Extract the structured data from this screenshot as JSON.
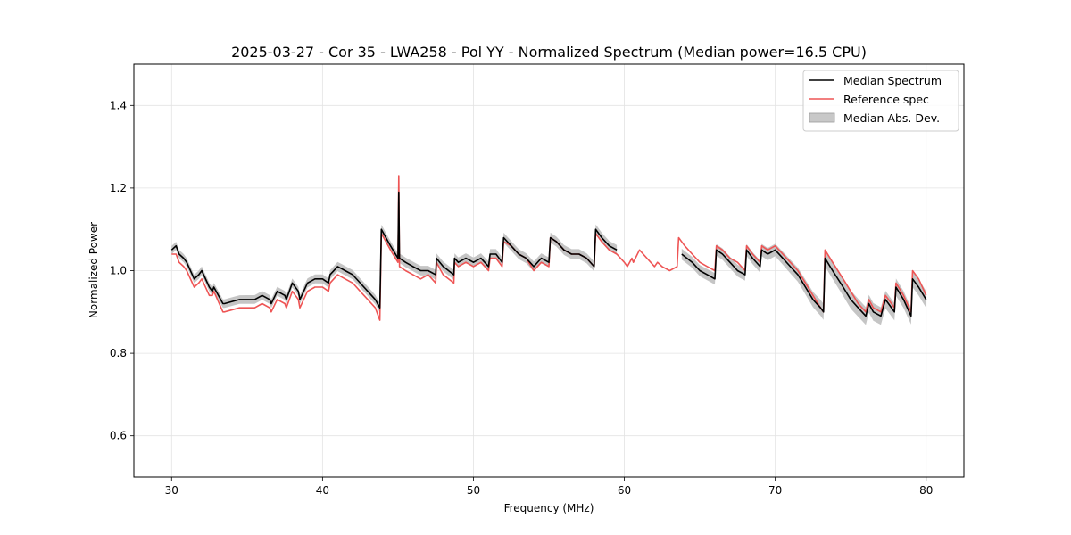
{
  "chart_data": {
    "type": "line",
    "title": "2025-03-27 - Cor 35 - LWA258 - Pol YY - Normalized Spectrum (Median power=16.5 CPU)",
    "xlabel": "Frequency (MHz)",
    "ylabel": "Normalized Power",
    "xlim": [
      27.5,
      82.5
    ],
    "ylim": [
      0.5,
      1.5
    ],
    "xticks": [
      30,
      40,
      50,
      60,
      70,
      80
    ],
    "yticks": [
      0.6,
      0.8,
      1.0,
      1.2,
      1.4
    ],
    "grid": true,
    "legend_position": "top-right",
    "colors": {
      "median": "#000000",
      "reference": "#ee5555",
      "mad": "#bbbbbb"
    },
    "series": [
      {
        "name": "Median Spectrum",
        "x": [
          30.0,
          30.3,
          30.5,
          30.8,
          31.0,
          31.5,
          31.8,
          32.0,
          32.5,
          32.7,
          32.8,
          33.4,
          33.5,
          34.5,
          35.0,
          35.5,
          36.0,
          36.5,
          36.6,
          37.0,
          37.5,
          37.6,
          38.0,
          38.4,
          38.5,
          39.0,
          39.5,
          40.0,
          40.4,
          40.5,
          41.0,
          41.5,
          42.0,
          42.5,
          43.0,
          43.5,
          43.8,
          43.9,
          44.5,
          45.0,
          45.05,
          45.1,
          45.5,
          46.0,
          46.5,
          47.0,
          47.5,
          47.55,
          48.0,
          48.7,
          48.75,
          49.0,
          49.5,
          50.0,
          50.5,
          51.0,
          51.1,
          51.5,
          51.9,
          52.0,
          52.5,
          53.0,
          53.5,
          54.0,
          54.5,
          55.0,
          55.1,
          55.5,
          56.0,
          56.5,
          57.0,
          57.5,
          58.0,
          58.1,
          58.5,
          59.0,
          59.5,
          null,
          63.8,
          64.5,
          65.0,
          65.5,
          66.0,
          66.1,
          66.5,
          67.0,
          67.5,
          68.0,
          68.1,
          68.5,
          69.0,
          69.1,
          69.5,
          70.0,
          70.5,
          71.0,
          71.5,
          72.0,
          72.5,
          73.0,
          73.2,
          73.3,
          73.8,
          74.5,
          75.0,
          75.5,
          76.0,
          76.2,
          76.5,
          77.0,
          77.3,
          77.5,
          77.9,
          78.0,
          78.5,
          79.0,
          79.1,
          79.5,
          80.0
        ],
        "values": [
          1.05,
          1.06,
          1.04,
          1.03,
          1.02,
          0.98,
          0.99,
          1.0,
          0.96,
          0.95,
          0.96,
          0.92,
          0.92,
          0.93,
          0.93,
          0.93,
          0.94,
          0.93,
          0.92,
          0.95,
          0.94,
          0.93,
          0.97,
          0.95,
          0.93,
          0.97,
          0.98,
          0.98,
          0.97,
          0.99,
          1.01,
          1.0,
          0.99,
          0.97,
          0.95,
          0.93,
          0.91,
          1.1,
          1.06,
          1.03,
          1.19,
          1.03,
          1.02,
          1.01,
          1.0,
          1.0,
          0.99,
          1.03,
          1.01,
          0.99,
          1.03,
          1.02,
          1.03,
          1.02,
          1.03,
          1.01,
          1.04,
          1.04,
          1.02,
          1.08,
          1.06,
          1.04,
          1.03,
          1.01,
          1.03,
          1.02,
          1.08,
          1.07,
          1.05,
          1.04,
          1.04,
          1.03,
          1.01,
          1.1,
          1.08,
          1.06,
          1.05,
          null,
          1.04,
          1.02,
          1.0,
          0.99,
          0.98,
          1.05,
          1.04,
          1.02,
          1.0,
          0.99,
          1.05,
          1.03,
          1.01,
          1.05,
          1.04,
          1.05,
          1.03,
          1.01,
          0.99,
          0.96,
          0.93,
          0.91,
          0.9,
          1.03,
          1.0,
          0.96,
          0.93,
          0.91,
          0.89,
          0.92,
          0.9,
          0.89,
          0.93,
          0.92,
          0.9,
          0.96,
          0.93,
          0.89,
          0.98,
          0.96,
          0.93
        ]
      },
      {
        "name": "Reference spec",
        "x": [
          30.0,
          30.3,
          30.5,
          30.8,
          31.0,
          31.5,
          31.8,
          32.0,
          32.5,
          32.7,
          32.8,
          33.4,
          33.5,
          34.5,
          35.0,
          35.5,
          36.0,
          36.5,
          36.6,
          37.0,
          37.5,
          37.6,
          38.0,
          38.4,
          38.5,
          39.0,
          39.5,
          40.0,
          40.4,
          40.5,
          41.0,
          41.5,
          42.0,
          42.5,
          43.0,
          43.5,
          43.8,
          43.9,
          44.5,
          45.0,
          45.05,
          45.1,
          45.5,
          46.0,
          46.5,
          47.0,
          47.5,
          47.55,
          48.0,
          48.7,
          48.75,
          49.0,
          49.5,
          50.0,
          50.5,
          51.0,
          51.1,
          51.5,
          51.9,
          52.0,
          52.5,
          53.0,
          53.5,
          54.0,
          54.5,
          55.0,
          55.1,
          55.5,
          56.0,
          56.5,
          57.0,
          57.5,
          58.0,
          58.1,
          58.5,
          59.0,
          59.5,
          60.0,
          60.2,
          60.5,
          60.6,
          61.0,
          61.5,
          62.0,
          62.2,
          62.5,
          63.0,
          63.5,
          63.6,
          64.0,
          64.5,
          65.0,
          65.5,
          66.0,
          66.1,
          66.5,
          67.0,
          67.5,
          68.0,
          68.1,
          68.5,
          69.0,
          69.1,
          69.5,
          70.0,
          70.5,
          71.0,
          71.5,
          72.0,
          72.5,
          73.0,
          73.2,
          73.3,
          73.8,
          74.5,
          75.0,
          75.5,
          76.0,
          76.2,
          76.5,
          77.0,
          77.3,
          77.5,
          77.9,
          78.0,
          78.5,
          79.0,
          79.1,
          79.5,
          80.0
        ],
        "values": [
          1.04,
          1.04,
          1.02,
          1.01,
          1.0,
          0.96,
          0.97,
          0.98,
          0.94,
          0.94,
          0.95,
          0.9,
          0.9,
          0.91,
          0.91,
          0.91,
          0.92,
          0.91,
          0.9,
          0.93,
          0.92,
          0.91,
          0.95,
          0.93,
          0.91,
          0.95,
          0.96,
          0.96,
          0.95,
          0.97,
          0.99,
          0.98,
          0.97,
          0.95,
          0.93,
          0.91,
          0.88,
          1.09,
          1.05,
          1.02,
          1.23,
          1.01,
          1.0,
          0.99,
          0.98,
          0.99,
          0.97,
          1.02,
          0.99,
          0.97,
          1.02,
          1.01,
          1.02,
          1.01,
          1.02,
          1.0,
          1.03,
          1.03,
          1.01,
          1.07,
          1.06,
          1.04,
          1.03,
          1.0,
          1.02,
          1.01,
          1.08,
          1.07,
          1.05,
          1.04,
          1.04,
          1.03,
          1.01,
          1.09,
          1.07,
          1.05,
          1.04,
          1.02,
          1.01,
          1.03,
          1.02,
          1.05,
          1.03,
          1.01,
          1.02,
          1.01,
          1.0,
          1.01,
          1.08,
          1.06,
          1.04,
          1.02,
          1.01,
          1.0,
          1.06,
          1.05,
          1.03,
          1.02,
          1.0,
          1.06,
          1.04,
          1.02,
          1.06,
          1.05,
          1.06,
          1.04,
          1.02,
          1.0,
          0.97,
          0.94,
          0.91,
          0.9,
          1.05,
          1.02,
          0.98,
          0.95,
          0.92,
          0.9,
          0.93,
          0.91,
          0.9,
          0.94,
          0.93,
          0.91,
          0.97,
          0.94,
          0.9,
          1.0,
          0.98,
          0.94
        ]
      }
    ],
    "mad_band": {
      "name": "Median Abs. Dev.",
      "halfwidth_by_x": [
        [
          30.0,
          0.01
        ],
        [
          50.0,
          0.012
        ],
        [
          60.0,
          0.012
        ],
        [
          70.0,
          0.015
        ],
        [
          75.0,
          0.022
        ],
        [
          80.0,
          0.02
        ]
      ]
    }
  },
  "legend": {
    "median_label": "Median Spectrum",
    "reference_label": "Reference spec",
    "mad_label": "Median Abs. Dev."
  }
}
